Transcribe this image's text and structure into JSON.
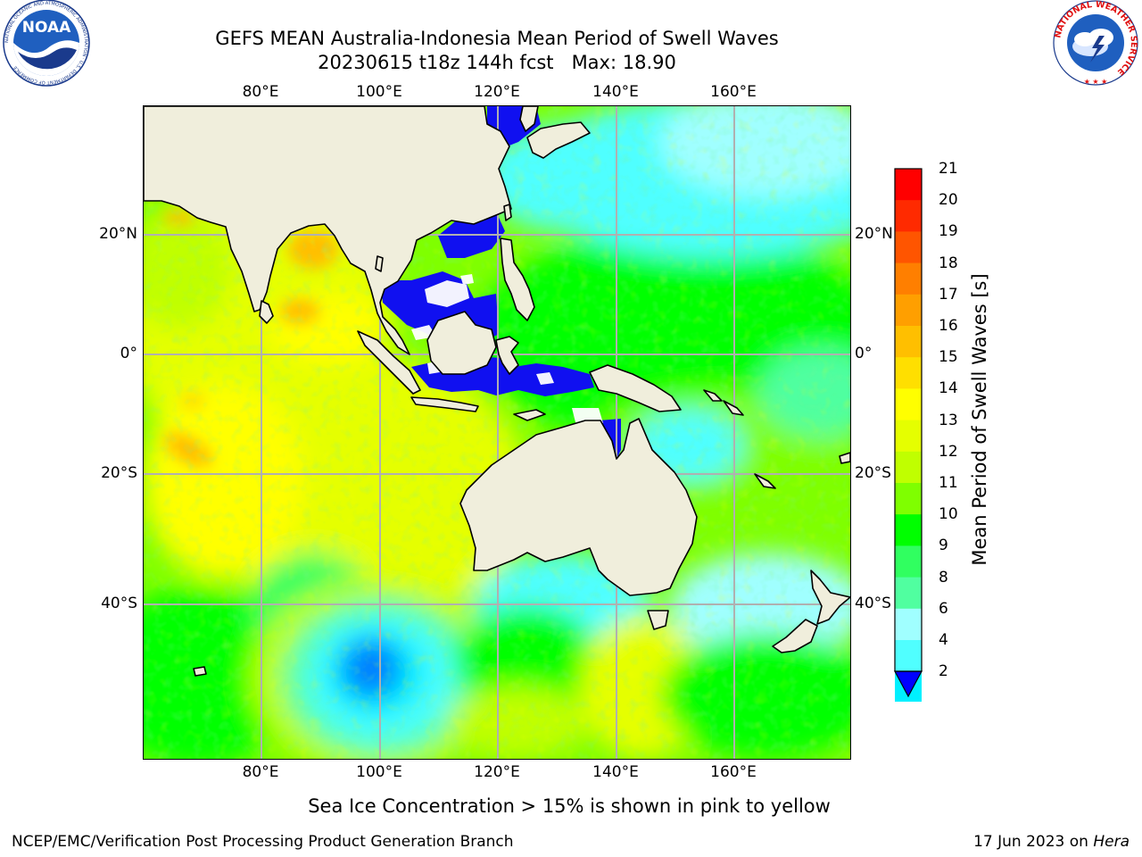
{
  "header": {
    "title_line1": "GEFS MEAN Australia-Indonesia Mean Period of Swell Waves",
    "title_line2": "20230615 t18z 144h fcst   Max: 18.90"
  },
  "logos": {
    "noaa": {
      "text": "NOAA",
      "ring_text": "NATIONAL OCEANIC AND ATMOSPHERIC ADMINISTRATION · U.S. DEPARTMENT OF COMMERCE"
    },
    "nws": {
      "ring_text": "NATIONAL WEATHER SERVICE"
    }
  },
  "map": {
    "longitude_ticks": [
      "80°E",
      "100°E",
      "120°E",
      "140°E",
      "160°E"
    ],
    "latitude_ticks_left": [
      "20°N",
      "0°",
      "20°S",
      "40°S"
    ],
    "latitude_ticks_right": [
      "20°N",
      "0°",
      "20°S",
      "40°S"
    ],
    "colors": {
      "land": "#f0eedc",
      "grid": "#b0b0b0",
      "coast": "#000000"
    },
    "field_regions": [
      {
        "area": "Bay of Bengal",
        "period_s": 16
      },
      {
        "area": "Western Indian Ocean",
        "period_s": 14
      },
      {
        "area": "Central Indian Ocean",
        "period_s": 13
      },
      {
        "area": "South Indian Ocean core",
        "period_s": 3
      },
      {
        "area": "South Indian Ocean ring",
        "period_s": 6
      },
      {
        "area": "South China Sea",
        "period_s": 3
      },
      {
        "area": "Indonesian Seas",
        "period_s": 3
      },
      {
        "area": "Western Pacific",
        "period_s": 10
      },
      {
        "area": "North Pacific",
        "period_s": 8
      },
      {
        "area": "Tasman Sea",
        "period_s": 7
      },
      {
        "area": "Southern Ocean",
        "period_s": 11
      }
    ]
  },
  "colorbar": {
    "label": "Mean Period of Swell Waves [s]",
    "tick_labels": [
      "21",
      "20",
      "19",
      "18",
      "17",
      "16",
      "15",
      "14",
      "13",
      "12",
      "11",
      "10",
      "9",
      "8",
      "6",
      "4",
      "2"
    ],
    "colors_top_to_bottom": [
      "#ff0000",
      "#ff2a00",
      "#ff5500",
      "#ff7f00",
      "#ff9f00",
      "#ffbf00",
      "#ffdf00",
      "#ffff00",
      "#e5ff00",
      "#c0ff00",
      "#7fff00",
      "#00ff00",
      "#30ff60",
      "#50ffa0",
      "#a0ffff",
      "#50ffff",
      "#00f0ff",
      "#0080ff"
    ],
    "extend_color": "#0000ff"
  },
  "caption": "Sea Ice Concentration > 15% is shown in pink to yellow",
  "footer": {
    "left": "NCEP/EMC/Verification Post Processing Product Generation Branch",
    "right_date": "17 Jun 2023 on",
    "right_machine": "Hera"
  }
}
